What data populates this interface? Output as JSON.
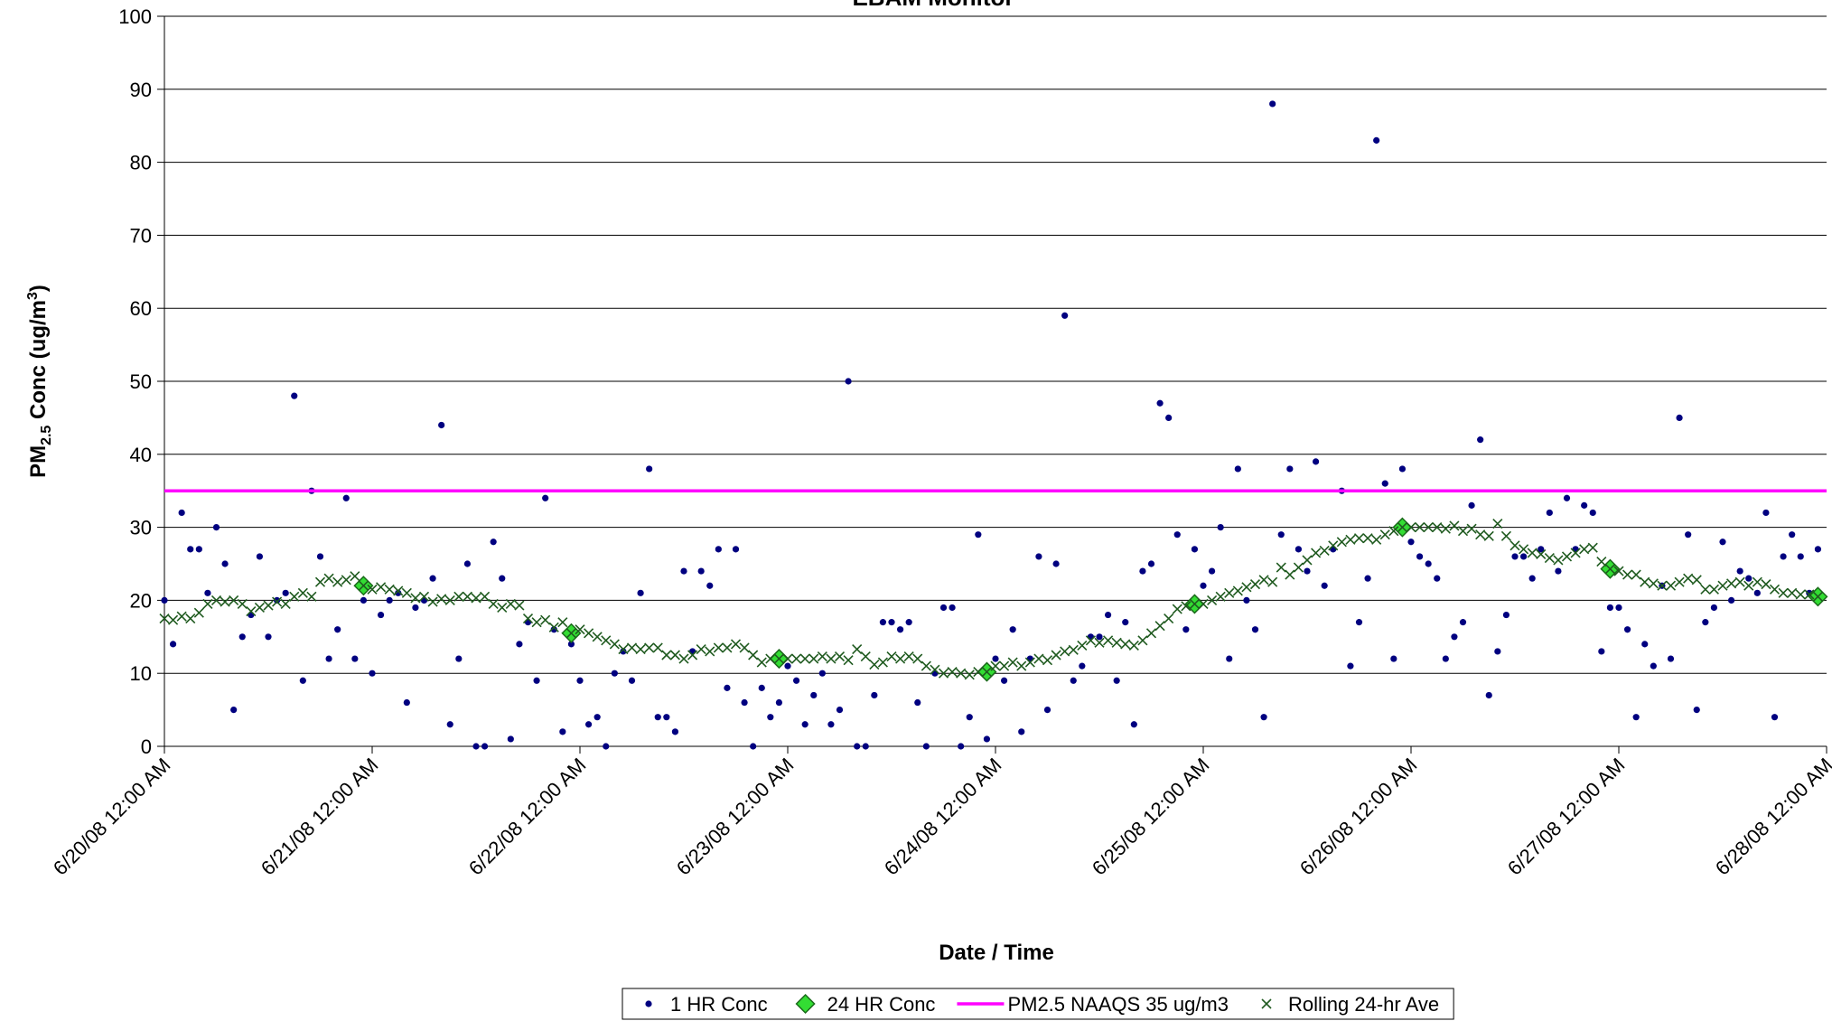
{
  "chart_data": {
    "type": "scatter",
    "title": "EBAM Monitor",
    "xlabel": "Date / Time",
    "ylabel_parts": [
      "PM",
      "2.5",
      " Conc (ug/m",
      "3",
      ")"
    ],
    "ylim": [
      0,
      100
    ],
    "yticks": [
      0,
      10,
      20,
      30,
      40,
      50,
      60,
      70,
      80,
      90,
      100
    ],
    "grid": true,
    "xlim": [
      "6/20/08 12:00 AM",
      "6/28/08 12:00 AM"
    ],
    "xticks": [
      "6/20/08 12:00 AM",
      "6/21/08 12:00 AM",
      "6/22/08 12:00 AM",
      "6/23/08 12:00 AM",
      "6/24/08 12:00 AM",
      "6/25/08 12:00 AM",
      "6/26/08 12:00 AM",
      "6/27/08 12:00 AM",
      "6/28/08 12:00 AM"
    ],
    "legend": "bottom",
    "x": [
      "6/20/08 12:00 AM",
      "6/20/08 1:00 AM",
      "6/20/08 2:00 AM",
      "6/20/08 3:00 AM",
      "6/20/08 4:00 AM",
      "6/20/08 5:00 AM",
      "6/20/08 6:00 AM",
      "6/20/08 7:00 AM",
      "6/20/08 8:00 AM",
      "6/20/08 9:00 AM",
      "6/20/08 10:00 AM",
      "6/20/08 11:00 AM",
      "6/20/08 12:00 PM",
      "6/20/08 1:00 PM",
      "6/20/08 2:00 PM",
      "6/20/08 3:00 PM",
      "6/20/08 4:00 PM",
      "6/20/08 5:00 PM",
      "6/20/08 6:00 PM",
      "6/20/08 7:00 PM",
      "6/20/08 8:00 PM",
      "6/20/08 9:00 PM",
      "6/20/08 10:00 PM",
      "6/20/08 11:00 PM",
      "6/21/08 12:00 AM",
      "6/21/08 1:00 AM",
      "6/21/08 2:00 AM",
      "6/21/08 3:00 AM",
      "6/21/08 4:00 AM",
      "6/21/08 5:00 AM",
      "6/21/08 6:00 AM",
      "6/21/08 7:00 AM",
      "6/21/08 8:00 AM",
      "6/21/08 9:00 AM",
      "6/21/08 10:00 AM",
      "6/21/08 11:00 AM",
      "6/21/08 12:00 PM",
      "6/21/08 1:00 PM",
      "6/21/08 2:00 PM",
      "6/21/08 3:00 PM",
      "6/21/08 4:00 PM",
      "6/21/08 5:00 PM",
      "6/21/08 6:00 PM",
      "6/21/08 7:00 PM",
      "6/21/08 8:00 PM",
      "6/21/08 9:00 PM",
      "6/21/08 10:00 PM",
      "6/21/08 11:00 PM",
      "6/22/08 12:00 AM",
      "6/22/08 1:00 AM",
      "6/22/08 2:00 AM",
      "6/22/08 3:00 AM",
      "6/22/08 4:00 AM",
      "6/22/08 5:00 AM",
      "6/22/08 6:00 AM",
      "6/22/08 7:00 AM",
      "6/22/08 8:00 AM",
      "6/22/08 9:00 AM",
      "6/22/08 10:00 AM",
      "6/22/08 11:00 AM",
      "6/22/08 12:00 PM",
      "6/22/08 1:00 PM",
      "6/22/08 2:00 PM",
      "6/22/08 3:00 PM",
      "6/22/08 4:00 PM",
      "6/22/08 5:00 PM",
      "6/22/08 6:00 PM",
      "6/22/08 7:00 PM",
      "6/22/08 8:00 PM",
      "6/22/08 9:00 PM",
      "6/22/08 10:00 PM",
      "6/22/08 11:00 PM",
      "6/23/08 12:00 AM",
      "6/23/08 1:00 AM",
      "6/23/08 2:00 AM",
      "6/23/08 3:00 AM",
      "6/23/08 4:00 AM",
      "6/23/08 5:00 AM",
      "6/23/08 6:00 AM",
      "6/23/08 7:00 AM",
      "6/23/08 8:00 AM",
      "6/23/08 9:00 AM",
      "6/23/08 10:00 AM",
      "6/23/08 11:00 AM",
      "6/23/08 12:00 PM",
      "6/23/08 1:00 PM",
      "6/23/08 2:00 PM",
      "6/23/08 3:00 PM",
      "6/23/08 4:00 PM",
      "6/23/08 5:00 PM",
      "6/23/08 6:00 PM",
      "6/23/08 7:00 PM",
      "6/23/08 8:00 PM",
      "6/23/08 9:00 PM",
      "6/23/08 10:00 PM",
      "6/23/08 11:00 PM",
      "6/24/08 12:00 AM",
      "6/24/08 1:00 AM",
      "6/24/08 2:00 AM",
      "6/24/08 3:00 AM",
      "6/24/08 4:00 AM",
      "6/24/08 5:00 AM",
      "6/24/08 6:00 AM",
      "6/24/08 7:00 AM",
      "6/24/08 8:00 AM",
      "6/24/08 9:00 AM",
      "6/24/08 10:00 AM",
      "6/24/08 11:00 AM",
      "6/24/08 12:00 PM",
      "6/24/08 1:00 PM",
      "6/24/08 2:00 PM",
      "6/24/08 3:00 PM",
      "6/24/08 4:00 PM",
      "6/24/08 5:00 PM",
      "6/24/08 6:00 PM",
      "6/24/08 7:00 PM",
      "6/24/08 8:00 PM",
      "6/24/08 9:00 PM",
      "6/24/08 10:00 PM",
      "6/24/08 11:00 PM",
      "6/25/08 12:00 AM",
      "6/25/08 1:00 AM",
      "6/25/08 2:00 AM",
      "6/25/08 3:00 AM",
      "6/25/08 4:00 AM",
      "6/25/08 5:00 AM",
      "6/25/08 6:00 AM",
      "6/25/08 7:00 AM",
      "6/25/08 8:00 AM",
      "6/25/08 9:00 AM",
      "6/25/08 10:00 AM",
      "6/25/08 11:00 AM",
      "6/25/08 12:00 PM",
      "6/25/08 1:00 PM",
      "6/25/08 2:00 PM",
      "6/25/08 3:00 PM",
      "6/25/08 4:00 PM",
      "6/25/08 5:00 PM",
      "6/25/08 6:00 PM",
      "6/25/08 7:00 PM",
      "6/25/08 8:00 PM",
      "6/25/08 9:00 PM",
      "6/25/08 10:00 PM",
      "6/25/08 11:00 PM",
      "6/26/08 12:00 AM",
      "6/26/08 1:00 AM",
      "6/26/08 2:00 AM",
      "6/26/08 3:00 AM",
      "6/26/08 4:00 AM",
      "6/26/08 5:00 AM",
      "6/26/08 6:00 AM",
      "6/26/08 7:00 AM",
      "6/26/08 8:00 AM",
      "6/26/08 9:00 AM",
      "6/26/08 10:00 AM",
      "6/26/08 11:00 AM",
      "6/26/08 12:00 PM",
      "6/26/08 1:00 PM",
      "6/26/08 2:00 PM",
      "6/26/08 3:00 PM",
      "6/26/08 4:00 PM",
      "6/26/08 5:00 PM",
      "6/26/08 6:00 PM",
      "6/26/08 7:00 PM",
      "6/26/08 8:00 PM",
      "6/26/08 9:00 PM",
      "6/26/08 10:00 PM",
      "6/26/08 11:00 PM",
      "6/27/08 12:00 AM",
      "6/27/08 1:00 AM",
      "6/27/08 2:00 AM",
      "6/27/08 3:00 AM",
      "6/27/08 4:00 AM",
      "6/27/08 5:00 AM",
      "6/27/08 6:00 AM",
      "6/27/08 7:00 AM",
      "6/27/08 8:00 AM",
      "6/27/08 9:00 AM",
      "6/27/08 10:00 AM",
      "6/27/08 11:00 AM",
      "6/27/08 12:00 PM",
      "6/27/08 1:00 PM",
      "6/27/08 2:00 PM",
      "6/27/08 3:00 PM",
      "6/27/08 4:00 PM",
      "6/27/08 5:00 PM",
      "6/27/08 6:00 PM",
      "6/27/08 7:00 PM",
      "6/27/08 8:00 PM",
      "6/27/08 9:00 PM",
      "6/27/08 10:00 PM",
      "6/27/08 11:00 PM"
    ],
    "series": [
      {
        "name": "1 HR Conc",
        "marker": "dot",
        "color": "#000080",
        "values": [
          20,
          14,
          32,
          27,
          27,
          21,
          30,
          25,
          5,
          15,
          18,
          26,
          15,
          20,
          21,
          48,
          9,
          35,
          26,
          12,
          16,
          34,
          12,
          20,
          10,
          18,
          20,
          21,
          6,
          19,
          20,
          23,
          44,
          3,
          12,
          25,
          0,
          0,
          28,
          23,
          1,
          14,
          17,
          9,
          34,
          16,
          2,
          14,
          9,
          3,
          4,
          0,
          10,
          13,
          9,
          21,
          38,
          4,
          4,
          2,
          24,
          13,
          24,
          22,
          27,
          8,
          27,
          6,
          0,
          8,
          4,
          6,
          11,
          9,
          3,
          7,
          10,
          3,
          5,
          50,
          0,
          0,
          7,
          17,
          17,
          16,
          17,
          6,
          0,
          10,
          19,
          19,
          0,
          4,
          29,
          1,
          12,
          9,
          16,
          2,
          12,
          26,
          5,
          25,
          59,
          9,
          11,
          15,
          15,
          18,
          9,
          17,
          3,
          24,
          25,
          47,
          45,
          29,
          16,
          27,
          22,
          24,
          30,
          12,
          38,
          20,
          16,
          4,
          88,
          29,
          38,
          27,
          24,
          39,
          22,
          27,
          35,
          11,
          17,
          23,
          83,
          36,
          12,
          38,
          28,
          26,
          25,
          23,
          12,
          15,
          17,
          33,
          42,
          7,
          13,
          18,
          26,
          26,
          23,
          27,
          32,
          24,
          34,
          27,
          33,
          32,
          13,
          19,
          19,
          16,
          4,
          14,
          11,
          22,
          12,
          45,
          29,
          5,
          17,
          19,
          28,
          20,
          24,
          23,
          21,
          32,
          4,
          26,
          29,
          26,
          21,
          27
        ]
      },
      {
        "name": "24 HR Conc",
        "marker": "diamond",
        "color": "#33dd33",
        "x": [
          "6/20/08 11:00 PM",
          "6/21/08 11:00 PM",
          "6/22/08 11:00 PM",
          "6/23/08 11:00 PM",
          "6/24/08 11:00 PM",
          "6/25/08 11:00 PM",
          "6/26/08 11:00 PM",
          "6/27/08 11:00 PM"
        ],
        "values": [
          22,
          15.5,
          12,
          10.2,
          19.5,
          30,
          24.3,
          20.5
        ]
      },
      {
        "name": "PM2.5 NAAQS 35 ug/m3",
        "marker": "hline",
        "color": "#ff00ff",
        "values": [
          35
        ]
      },
      {
        "name": "Rolling 24-hr Ave",
        "marker": "cross",
        "color": "#1f5a1f",
        "values": [
          17.5,
          17.3,
          17.8,
          17.5,
          18.3,
          19.5,
          20,
          19.8,
          20,
          19.5,
          18.5,
          19,
          19.3,
          19.8,
          19.5,
          20.5,
          21,
          20.5,
          22.5,
          23,
          22.5,
          22.8,
          23.3,
          22,
          21.5,
          21.8,
          21.5,
          21.3,
          21,
          20.3,
          20.5,
          19.8,
          20.2,
          20,
          20.5,
          20.5,
          20.3,
          20.5,
          19.5,
          19,
          19.5,
          19.3,
          17.5,
          17,
          17.3,
          16.3,
          17,
          15.5,
          16,
          15.5,
          15,
          14.5,
          14,
          13.3,
          13.5,
          13.3,
          13.5,
          13.5,
          12.5,
          12.5,
          12,
          12.5,
          13.3,
          13,
          13.5,
          13.5,
          14,
          13.5,
          12.5,
          11.5,
          12,
          12,
          12,
          12,
          12,
          12,
          12.3,
          12,
          12.3,
          11.8,
          13.3,
          12.3,
          11.2,
          11.5,
          12.3,
          12,
          12.3,
          12,
          11,
          10.5,
          10,
          10.2,
          10,
          9.8,
          10.2,
          10.2,
          11,
          11,
          11.5,
          11,
          11.5,
          12,
          11.8,
          12.5,
          13,
          13.2,
          13.8,
          14.5,
          14.2,
          14.5,
          14.2,
          14,
          13.8,
          14.5,
          15.5,
          16.5,
          17.5,
          18.8,
          19.2,
          19.5,
          19.5,
          20,
          20.5,
          21,
          21.3,
          21.8,
          22.2,
          22.8,
          22.5,
          24.5,
          23.5,
          24.5,
          25.5,
          26.5,
          26.8,
          27.5,
          28,
          28.3,
          28.5,
          28.5,
          28.3,
          29,
          29.5,
          30,
          30,
          30,
          30,
          30,
          29.8,
          30.2,
          29.5,
          29.8,
          29,
          28.8,
          30.5,
          28.8,
          27.5,
          27,
          26.5,
          26.3,
          25.8,
          25.5,
          26,
          26.5,
          27,
          27.2,
          25.3,
          24.3,
          24,
          23.5,
          23.5,
          22.5,
          22.3,
          22,
          22,
          22.5,
          23,
          22.8,
          21.5,
          21.5,
          22,
          22.3,
          22.5,
          22,
          22.5,
          22.2,
          21.5,
          21,
          21,
          20.8,
          20.8,
          20.5
        ]
      }
    ]
  }
}
